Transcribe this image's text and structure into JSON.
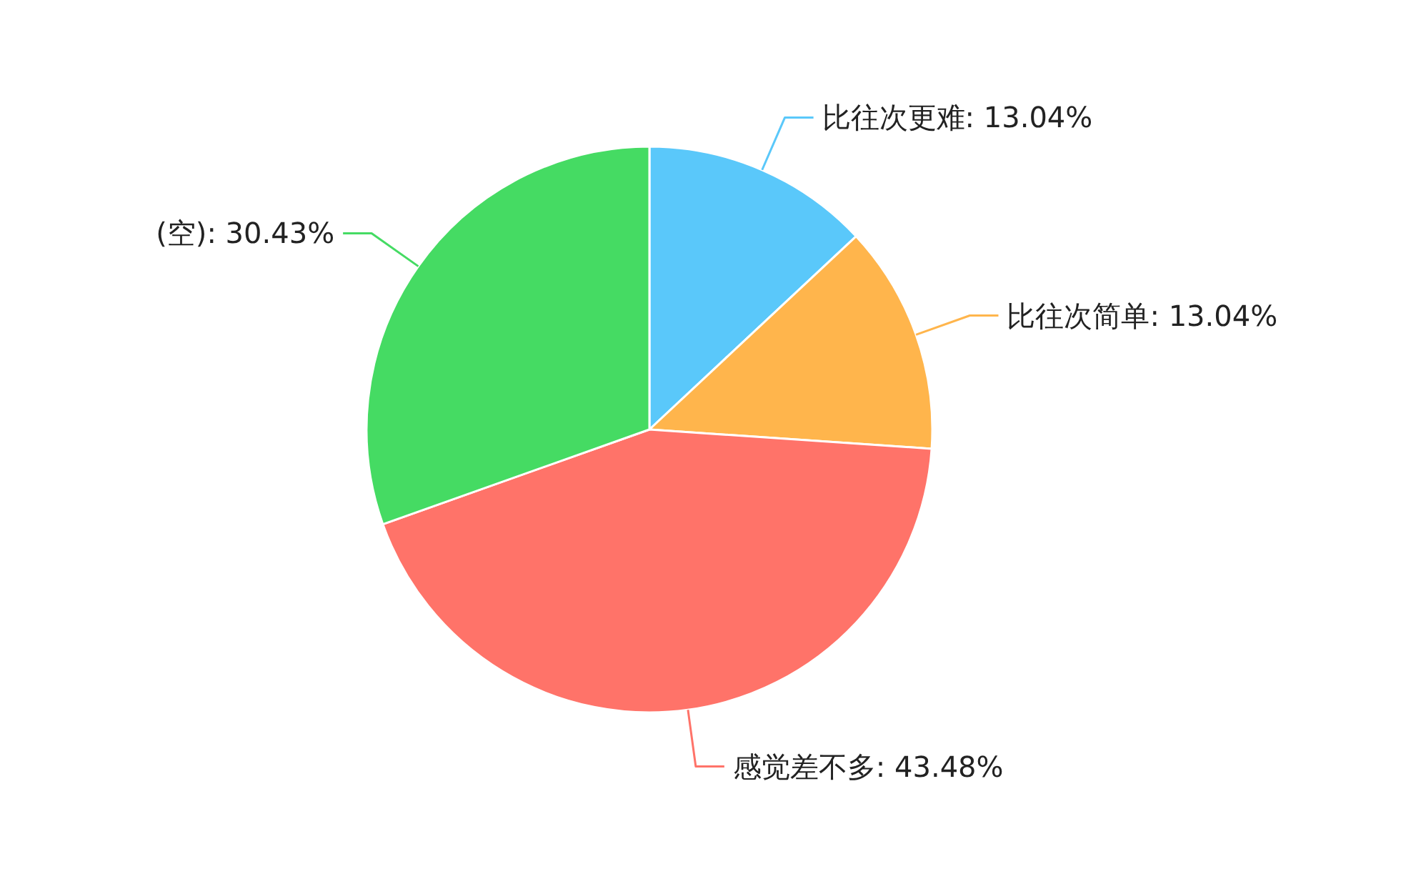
{
  "chart_data": {
    "type": "pie",
    "categories": [
      "比往次更难",
      "比往次简单",
      "感觉差不多",
      "(空)"
    ],
    "values": [
      13.04,
      13.04,
      43.48,
      30.43
    ],
    "colors": [
      "#5ac8fa",
      "#ffb54c",
      "#ff7369",
      "#45db63"
    ],
    "value_labels": [
      "13.04%",
      "13.04%",
      "43.48%",
      "30.43%"
    ]
  }
}
